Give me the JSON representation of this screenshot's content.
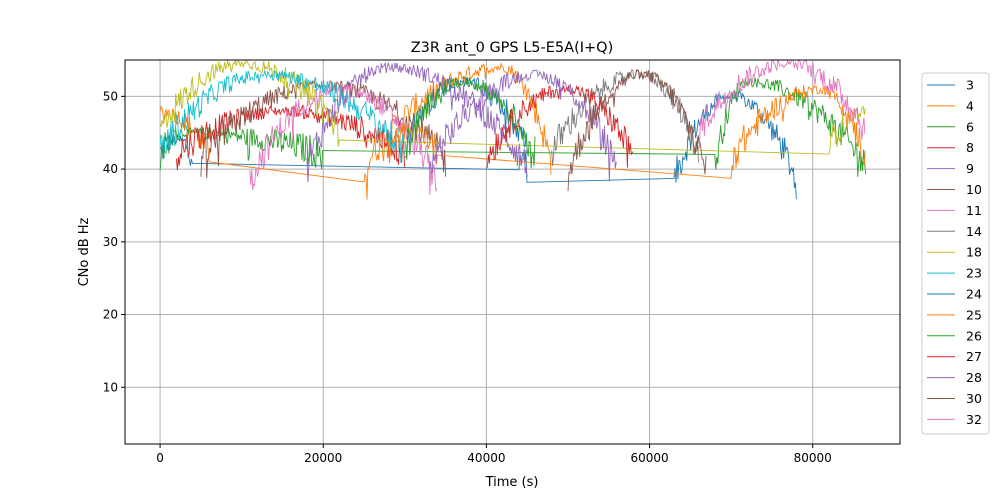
{
  "chart_data": {
    "type": "line",
    "title": "Z3R ant_0 GPS L5-E5A(I+Q)",
    "xlabel": "Time (s)",
    "ylabel": "CNo dB Hz",
    "xlim": [
      -4300,
      90700
    ],
    "ylim": [
      2.2,
      55
    ],
    "xticks": [
      0,
      20000,
      40000,
      60000,
      80000
    ],
    "yticks": [
      10,
      20,
      30,
      40,
      50
    ],
    "grid": true,
    "legend_position": "right-outside",
    "segment_format": "[start_s, end_s, peak_s, peak_dBHz, edge_dBHz]",
    "series": [
      {
        "name": "3",
        "color": "#1f77b4",
        "segments": [
          [
            0,
            4000,
            2000,
            44,
            42
          ],
          [
            44000,
            45000,
            44500,
            42,
            40
          ],
          [
            63000,
            78000,
            70000,
            50,
            38
          ]
        ]
      },
      {
        "name": "4",
        "color": "#ff7f0e",
        "segments": [
          [
            0,
            6000,
            0,
            48,
            42
          ],
          [
            25000,
            48000,
            42000,
            54,
            40
          ]
        ]
      },
      {
        "name": "6",
        "color": "#2ca02c",
        "segments": [
          [
            0,
            20000,
            3000,
            45,
            42
          ],
          [
            68000,
            86500,
            72000,
            52,
            40
          ]
        ]
      },
      {
        "name": "8",
        "color": "#d62728",
        "segments": [
          [
            2000,
            30000,
            15000,
            48,
            42
          ]
        ]
      },
      {
        "name": "9",
        "color": "#9467bd",
        "segments": [
          [
            18000,
            45000,
            28000,
            54,
            40
          ]
        ]
      },
      {
        "name": "10",
        "color": "#8c564b",
        "segments": [
          [
            5000,
            35000,
            20000,
            51.5,
            41
          ]
        ]
      },
      {
        "name": "11",
        "color": "#e377c2",
        "segments": [
          [
            11000,
            34000,
            22000,
            51,
            38
          ]
        ]
      },
      {
        "name": "14",
        "color": "#7f7f7f",
        "segments": [
          [
            48000,
            66000,
            59000,
            53,
            42
          ]
        ]
      },
      {
        "name": "18",
        "color": "#bcbd22",
        "segments": [
          [
            0,
            22000,
            10000,
            54.5,
            45
          ],
          [
            82000,
            86500,
            86500,
            48,
            43
          ]
        ]
      },
      {
        "name": "23",
        "color": "#17becf",
        "segments": [
          [
            0,
            30000,
            13000,
            53,
            42
          ]
        ]
      },
      {
        "name": "24",
        "color": "#1f77b4",
        "segments": [
          [
            30000,
            45000,
            37000,
            52,
            43
          ]
        ]
      },
      {
        "name": "25",
        "color": "#ff7f0e",
        "segments": [
          [
            28000,
            34000,
            31000,
            45.5,
            42
          ],
          [
            70000,
            86500,
            81000,
            51,
            41
          ]
        ]
      },
      {
        "name": "26",
        "color": "#2ca02c",
        "segments": [
          [
            30000,
            46000,
            37000,
            52,
            42
          ]
        ]
      },
      {
        "name": "27",
        "color": "#d62728",
        "segments": [
          [
            40000,
            58000,
            50000,
            51,
            41
          ]
        ]
      },
      {
        "name": "28",
        "color": "#9467bd",
        "segments": [
          [
            33000,
            56000,
            46000,
            53,
            40
          ]
        ]
      },
      {
        "name": "30",
        "color": "#8c564b",
        "segments": [
          [
            50000,
            67000,
            59000,
            53,
            39
          ]
        ]
      },
      {
        "name": "32",
        "color": "#e377c2",
        "segments": [
          [
            66000,
            86500,
            77000,
            54.5,
            45
          ]
        ]
      }
    ]
  }
}
